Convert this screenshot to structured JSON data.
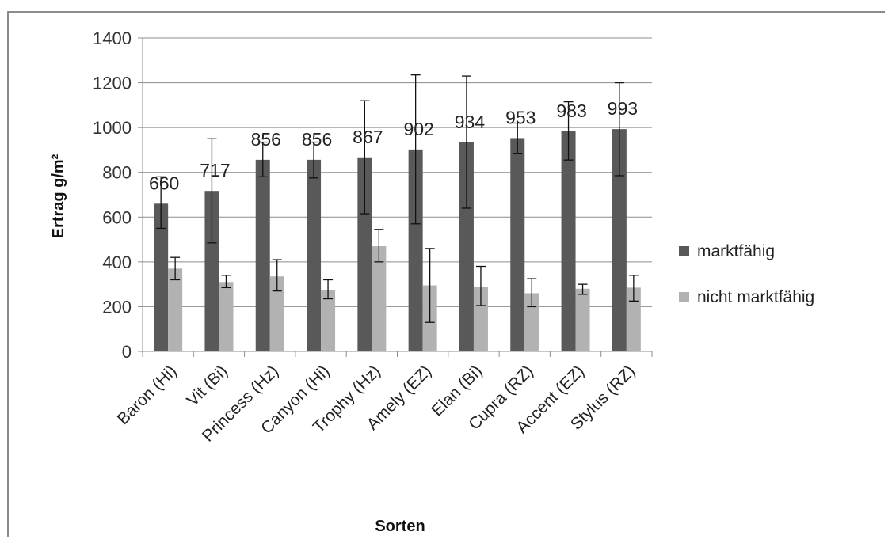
{
  "chart_data": {
    "type": "bar",
    "title": "",
    "xlabel": "Sorten",
    "ylabel": "Ertrag g/m²",
    "ylim": [
      0,
      1400
    ],
    "yticks": [
      0,
      200,
      400,
      600,
      800,
      1000,
      1200,
      1400
    ],
    "grid": true,
    "legend_position": "right",
    "categories": [
      "Baron (Hi)",
      "Vit (Bi)",
      "Princess (Hz)",
      "Canyon (Hi)",
      "Trophy (Hz)",
      "Amely (EZ)",
      "Elan (Bi)",
      "Cupra (RZ)",
      "Accent (EZ)",
      "Stylus (RZ)"
    ],
    "series": [
      {
        "name": "marktfähig",
        "color": "#595959",
        "values": [
          660,
          717,
          856,
          856,
          867,
          902,
          934,
          953,
          983,
          993
        ],
        "error_low": [
          550,
          485,
          780,
          775,
          615,
          570,
          640,
          885,
          855,
          785
        ],
        "error_high": [
          780,
          950,
          935,
          935,
          1120,
          1235,
          1230,
          1020,
          1115,
          1200
        ],
        "data_labels": [
          "660",
          "717",
          "856",
          "856",
          "867",
          "902",
          "934",
          "953",
          "983",
          "993"
        ]
      },
      {
        "name": "nicht marktfähig",
        "color": "#b2b2b2",
        "values": [
          370,
          310,
          335,
          275,
          470,
          295,
          290,
          260,
          280,
          285
        ],
        "error_low": [
          320,
          285,
          270,
          235,
          400,
          130,
          205,
          200,
          255,
          225
        ],
        "error_high": [
          420,
          340,
          410,
          320,
          545,
          460,
          380,
          325,
          300,
          340
        ]
      }
    ]
  }
}
